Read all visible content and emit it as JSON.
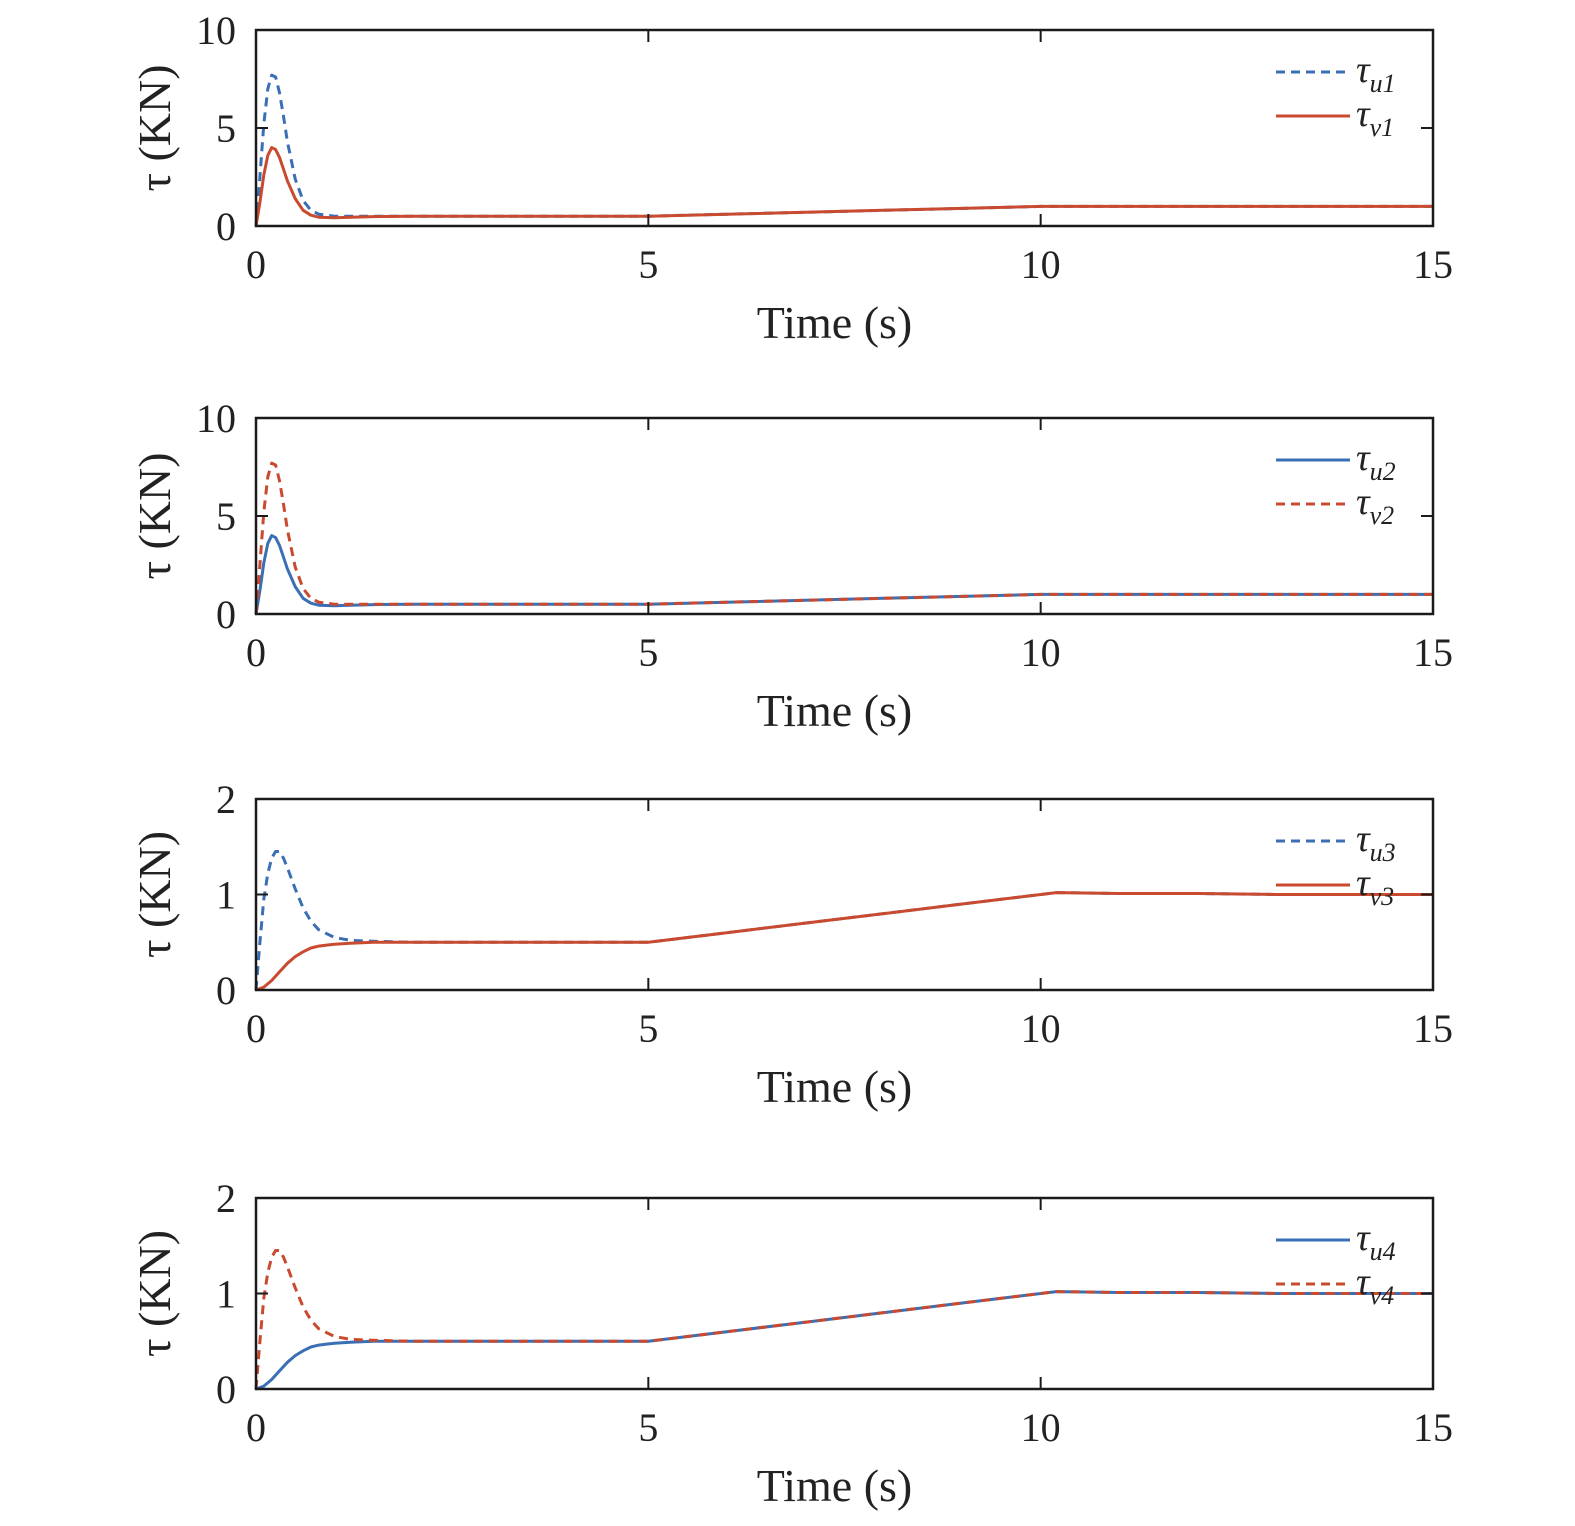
{
  "colors": {
    "blue": "#3a6fb5",
    "red": "#c94a2f",
    "axis": "#1a1a1a"
  },
  "chart_data": [
    {
      "type": "line",
      "xlabel": "Time (s)",
      "ylabel": "τ (KN)",
      "xlim": [
        0,
        15
      ],
      "ylim": [
        0,
        10
      ],
      "xticks": [
        0,
        5,
        10,
        15
      ],
      "yticks": [
        0,
        5,
        10
      ],
      "xtick_labels": [
        "0",
        "5",
        "10",
        "15"
      ],
      "ytick_labels": [
        "0",
        "5",
        "10"
      ],
      "legend_position": "top-right",
      "series": [
        {
          "name": "τu1",
          "symbol": "τ",
          "subscript": "u1",
          "color": "#3a6fb5",
          "dash": "dashed",
          "x": [
            0,
            0.05,
            0.1,
            0.15,
            0.2,
            0.25,
            0.3,
            0.35,
            0.4,
            0.5,
            0.6,
            0.7,
            0.8,
            1.0,
            1.2,
            1.5,
            2,
            3,
            4,
            5,
            6,
            7,
            8,
            9,
            10,
            10.2,
            11,
            12,
            13,
            14,
            15
          ],
          "y": [
            0,
            2.5,
            5.2,
            7.0,
            7.7,
            7.6,
            6.8,
            5.6,
            4.3,
            2.4,
            1.3,
            0.8,
            0.6,
            0.5,
            0.5,
            0.5,
            0.5,
            0.5,
            0.5,
            0.5,
            0.6,
            0.7,
            0.8,
            0.9,
            1.0,
            1.0,
            1.0,
            1.0,
            1.0,
            1.0,
            1.0
          ]
        },
        {
          "name": "τv1",
          "symbol": "τ",
          "subscript": "v1",
          "color": "#c94a2f",
          "dash": "solid",
          "x": [
            0,
            0.05,
            0.1,
            0.15,
            0.2,
            0.25,
            0.3,
            0.35,
            0.4,
            0.5,
            0.6,
            0.7,
            0.8,
            1.0,
            1.2,
            1.5,
            2,
            3,
            4,
            5,
            6,
            7,
            8,
            9,
            10,
            10.2,
            11,
            12,
            13,
            14,
            15
          ],
          "y": [
            0,
            1.2,
            2.6,
            3.6,
            4.0,
            3.9,
            3.5,
            2.9,
            2.3,
            1.4,
            0.8,
            0.55,
            0.45,
            0.42,
            0.45,
            0.48,
            0.5,
            0.5,
            0.5,
            0.5,
            0.6,
            0.7,
            0.8,
            0.9,
            1.0,
            1.0,
            1.0,
            1.0,
            1.0,
            1.0,
            1.0
          ]
        }
      ]
    },
    {
      "type": "line",
      "xlabel": "Time (s)",
      "ylabel": "τ (KN)",
      "xlim": [
        0,
        15
      ],
      "ylim": [
        0,
        10
      ],
      "xticks": [
        0,
        5,
        10,
        15
      ],
      "yticks": [
        0,
        5,
        10
      ],
      "xtick_labels": [
        "0",
        "5",
        "10",
        "15"
      ],
      "ytick_labels": [
        "0",
        "5",
        "10"
      ],
      "legend_position": "top-right",
      "series": [
        {
          "name": "τu2",
          "symbol": "τ",
          "subscript": "u2",
          "color": "#3a6fb5",
          "dash": "solid",
          "x": [
            0,
            0.05,
            0.1,
            0.15,
            0.2,
            0.25,
            0.3,
            0.35,
            0.4,
            0.5,
            0.6,
            0.7,
            0.8,
            1.0,
            1.2,
            1.5,
            2,
            3,
            4,
            5,
            6,
            7,
            8,
            9,
            10,
            10.2,
            11,
            12,
            13,
            14,
            15
          ],
          "y": [
            0,
            1.2,
            2.6,
            3.6,
            4.0,
            3.9,
            3.5,
            2.9,
            2.3,
            1.4,
            0.8,
            0.55,
            0.45,
            0.42,
            0.45,
            0.48,
            0.5,
            0.5,
            0.5,
            0.5,
            0.6,
            0.7,
            0.8,
            0.9,
            1.0,
            1.0,
            1.0,
            1.0,
            1.0,
            1.0,
            1.0
          ]
        },
        {
          "name": "τv2",
          "symbol": "τ",
          "subscript": "v2",
          "color": "#c94a2f",
          "dash": "dashed",
          "x": [
            0,
            0.05,
            0.1,
            0.15,
            0.2,
            0.25,
            0.3,
            0.35,
            0.4,
            0.5,
            0.6,
            0.7,
            0.8,
            1.0,
            1.2,
            1.5,
            2,
            3,
            4,
            5,
            6,
            7,
            8,
            9,
            10,
            10.2,
            11,
            12,
            13,
            14,
            15
          ],
          "y": [
            0,
            2.5,
            5.2,
            7.0,
            7.7,
            7.6,
            6.8,
            5.6,
            4.3,
            2.4,
            1.3,
            0.8,
            0.6,
            0.5,
            0.5,
            0.5,
            0.5,
            0.5,
            0.5,
            0.5,
            0.6,
            0.7,
            0.8,
            0.9,
            1.0,
            1.0,
            1.0,
            1.0,
            1.0,
            1.0,
            1.0
          ]
        }
      ]
    },
    {
      "type": "line",
      "xlabel": "Time (s)",
      "ylabel": "τ (KN)",
      "xlim": [
        0,
        15
      ],
      "ylim": [
        0,
        2
      ],
      "xticks": [
        0,
        5,
        10,
        15
      ],
      "yticks": [
        0,
        1,
        2
      ],
      "xtick_labels": [
        "0",
        "5",
        "10",
        "15"
      ],
      "ytick_labels": [
        "0",
        "1",
        "2"
      ],
      "legend_position": "top-right",
      "series": [
        {
          "name": "τu3",
          "symbol": "τ",
          "subscript": "u3",
          "color": "#3a6fb5",
          "dash": "dashed",
          "x": [
            0,
            0.05,
            0.1,
            0.15,
            0.2,
            0.25,
            0.3,
            0.35,
            0.4,
            0.5,
            0.6,
            0.7,
            0.8,
            1.0,
            1.2,
            1.5,
            2,
            3,
            4,
            5,
            6,
            7,
            8,
            9,
            10,
            10.2,
            11,
            12,
            13,
            14,
            15
          ],
          "y": [
            0,
            0.5,
            0.95,
            1.22,
            1.38,
            1.45,
            1.45,
            1.38,
            1.28,
            1.06,
            0.86,
            0.72,
            0.63,
            0.55,
            0.52,
            0.51,
            0.5,
            0.5,
            0.5,
            0.5,
            0.6,
            0.7,
            0.8,
            0.9,
            1.0,
            1.02,
            1.01,
            1.01,
            1.0,
            1.0,
            1.0
          ]
        },
        {
          "name": "τv3",
          "symbol": "τ",
          "subscript": "v3",
          "color": "#c94a2f",
          "dash": "solid",
          "x": [
            0,
            0.1,
            0.2,
            0.3,
            0.4,
            0.5,
            0.6,
            0.7,
            0.8,
            0.9,
            1.0,
            1.2,
            1.5,
            2,
            3,
            4,
            5,
            6,
            7,
            8,
            9,
            10,
            10.2,
            11,
            12,
            13,
            14,
            15
          ],
          "y": [
            0,
            0.03,
            0.1,
            0.19,
            0.28,
            0.35,
            0.4,
            0.44,
            0.46,
            0.47,
            0.48,
            0.49,
            0.5,
            0.5,
            0.5,
            0.5,
            0.5,
            0.6,
            0.7,
            0.8,
            0.9,
            1.0,
            1.02,
            1.01,
            1.01,
            1.0,
            1.0,
            1.0
          ]
        }
      ]
    },
    {
      "type": "line",
      "xlabel": "Time (s)",
      "ylabel": "τ (KN)",
      "xlim": [
        0,
        15
      ],
      "ylim": [
        0,
        2
      ],
      "xticks": [
        0,
        5,
        10,
        15
      ],
      "yticks": [
        0,
        1,
        2
      ],
      "xtick_labels": [
        "0",
        "5",
        "10",
        "15"
      ],
      "ytick_labels": [
        "0",
        "1",
        "2"
      ],
      "legend_position": "top-right",
      "series": [
        {
          "name": "τu4",
          "symbol": "τ",
          "subscript": "u4",
          "color": "#3a6fb5",
          "dash": "solid",
          "x": [
            0,
            0.1,
            0.2,
            0.3,
            0.4,
            0.5,
            0.6,
            0.7,
            0.8,
            0.9,
            1.0,
            1.2,
            1.5,
            2,
            3,
            4,
            5,
            6,
            7,
            8,
            9,
            10,
            10.2,
            11,
            12,
            13,
            14,
            15
          ],
          "y": [
            0,
            0.03,
            0.1,
            0.19,
            0.28,
            0.35,
            0.4,
            0.44,
            0.46,
            0.47,
            0.48,
            0.49,
            0.5,
            0.5,
            0.5,
            0.5,
            0.5,
            0.6,
            0.7,
            0.8,
            0.9,
            1.0,
            1.02,
            1.01,
            1.01,
            1.0,
            1.0,
            1.0
          ]
        },
        {
          "name": "τv4",
          "symbol": "τ",
          "subscript": "v4",
          "color": "#c94a2f",
          "dash": "dashed",
          "x": [
            0,
            0.05,
            0.1,
            0.15,
            0.2,
            0.25,
            0.3,
            0.35,
            0.4,
            0.5,
            0.6,
            0.7,
            0.8,
            1.0,
            1.2,
            1.5,
            2,
            3,
            4,
            5,
            6,
            7,
            8,
            9,
            10,
            10.2,
            11,
            12,
            13,
            14,
            15
          ],
          "y": [
            0,
            0.5,
            0.95,
            1.22,
            1.38,
            1.45,
            1.45,
            1.38,
            1.28,
            1.06,
            0.86,
            0.72,
            0.63,
            0.55,
            0.52,
            0.51,
            0.5,
            0.5,
            0.5,
            0.5,
            0.6,
            0.7,
            0.8,
            0.9,
            1.0,
            1.02,
            1.01,
            1.01,
            1.0,
            1.0,
            1.0
          ]
        }
      ]
    }
  ]
}
